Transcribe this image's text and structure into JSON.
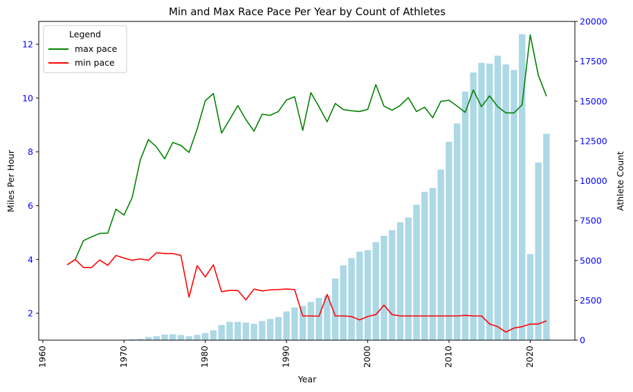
{
  "chart_data": {
    "type": "bar+line",
    "title": "Min and Max Race Pace Per Year by Count of Athletes",
    "xlabel": "Year",
    "ylabel_left": "Miles Per Hour",
    "ylabel_right": "Athlete Count",
    "xlim": [
      1959.5,
      2025.5
    ],
    "ylim_left": [
      1.0,
      12.85
    ],
    "ylim_right": [
      0,
      20000
    ],
    "x_ticks": [
      1960,
      1970,
      1980,
      1990,
      2000,
      2010,
      2020
    ],
    "y_left_ticks": [
      2,
      4,
      6,
      8,
      10,
      12
    ],
    "y_right_ticks": [
      0,
      2500,
      5000,
      7500,
      10000,
      12500,
      15000,
      17500,
      20000
    ],
    "right_axis_color": "#0000ff",
    "grid": false,
    "legend": {
      "title": "Legend",
      "placement": "top-left",
      "entries": [
        {
          "label": "max pace",
          "color": "#008000"
        },
        {
          "label": "min pace",
          "color": "#ff0000"
        }
      ]
    },
    "bars": {
      "name": "athlete count",
      "color": "#add8e6",
      "x": [
        1963,
        1964,
        1965,
        1966,
        1967,
        1968,
        1969,
        1970,
        1971,
        1972,
        1973,
        1974,
        1975,
        1976,
        1977,
        1978,
        1979,
        1980,
        1981,
        1982,
        1983,
        1984,
        1985,
        1986,
        1987,
        1988,
        1989,
        1990,
        1991,
        1992,
        1993,
        1994,
        1995,
        1996,
        1997,
        1998,
        1999,
        2000,
        2001,
        2002,
        2003,
        2004,
        2005,
        2006,
        2007,
        2008,
        2009,
        2010,
        2011,
        2012,
        2013,
        2014,
        2015,
        2016,
        2017,
        2018,
        2019,
        2020,
        2021,
        2022
      ],
      "values": [
        5,
        5,
        5,
        5,
        5,
        5,
        10,
        20,
        50,
        80,
        200,
        250,
        350,
        370,
        320,
        250,
        330,
        450,
        620,
        950,
        1150,
        1150,
        1100,
        1030,
        1200,
        1330,
        1450,
        1800,
        2050,
        2150,
        2400,
        2650,
        2800,
        3870,
        4700,
        5150,
        5550,
        5650,
        6150,
        6550,
        6900,
        7400,
        7700,
        8500,
        9300,
        9550,
        10700,
        12450,
        13600,
        15600,
        16800,
        17400,
        17350,
        17850,
        17300,
        16950,
        19200,
        5400,
        11150,
        12950
      ]
    },
    "series": [
      {
        "name": "max pace",
        "color": "#008000",
        "x": [
          1963,
          1964,
          1965,
          1966,
          1967,
          1968,
          1969,
          1970,
          1971,
          1972,
          1973,
          1974,
          1975,
          1976,
          1977,
          1978,
          1979,
          1980,
          1981,
          1982,
          1983,
          1984,
          1985,
          1986,
          1987,
          1988,
          1989,
          1990,
          1991,
          1992,
          1993,
          1994,
          1995,
          1996,
          1997,
          1998,
          1999,
          2000,
          2001,
          2002,
          2003,
          2004,
          2005,
          2006,
          2007,
          2008,
          2009,
          2010,
          2011,
          2012,
          2013,
          2014,
          2015,
          2016,
          2017,
          2018,
          2019,
          2020,
          2021,
          2022
        ],
        "values": [
          3.8,
          4.0,
          4.7,
          4.84,
          4.97,
          4.98,
          5.87,
          5.65,
          6.3,
          7.7,
          8.46,
          8.18,
          7.74,
          8.35,
          8.24,
          7.98,
          8.85,
          9.9,
          10.17,
          8.7,
          9.2,
          9.72,
          9.2,
          8.77,
          9.4,
          9.36,
          9.5,
          9.93,
          10.05,
          8.8,
          10.2,
          9.68,
          9.12,
          9.8,
          9.57,
          9.53,
          9.5,
          9.58,
          10.5,
          9.7,
          9.55,
          9.73,
          10.02,
          9.5,
          9.66,
          9.27,
          9.88,
          9.92,
          9.7,
          9.47,
          10.3,
          9.68,
          10.08,
          9.68,
          9.45,
          9.45,
          9.75,
          12.35,
          10.85,
          10.07
        ]
      },
      {
        "name": "min pace",
        "color": "#ff0000",
        "x": [
          1963,
          1964,
          1965,
          1966,
          1967,
          1968,
          1969,
          1970,
          1971,
          1972,
          1973,
          1974,
          1975,
          1976,
          1977,
          1978,
          1979,
          1980,
          1981,
          1982,
          1983,
          1984,
          1985,
          1986,
          1987,
          1988,
          1989,
          1990,
          1991,
          1992,
          1993,
          1994,
          1995,
          1996,
          1997,
          1998,
          1999,
          2000,
          2001,
          2002,
          2003,
          2004,
          2005,
          2006,
          2007,
          2008,
          2009,
          2010,
          2011,
          2012,
          2013,
          2014,
          2015,
          2016,
          2017,
          2018,
          2019,
          2020,
          2021,
          2022
        ],
        "values": [
          3.8,
          4.0,
          3.7,
          3.7,
          3.98,
          3.78,
          4.15,
          4.05,
          3.97,
          4.02,
          3.97,
          4.25,
          4.22,
          4.22,
          4.15,
          2.6,
          3.77,
          3.35,
          3.8,
          2.8,
          2.85,
          2.85,
          2.5,
          2.9,
          2.83,
          2.87,
          2.88,
          2.9,
          2.88,
          1.9,
          1.9,
          1.89,
          2.7,
          1.9,
          1.9,
          1.88,
          1.75,
          1.88,
          1.95,
          2.3,
          1.95,
          1.9,
          1.9,
          1.9,
          1.9,
          1.9,
          1.9,
          1.9,
          1.9,
          1.92,
          1.9,
          1.9,
          1.6,
          1.5,
          1.3,
          1.45,
          1.5,
          1.6,
          1.6,
          1.72
        ]
      }
    ]
  }
}
